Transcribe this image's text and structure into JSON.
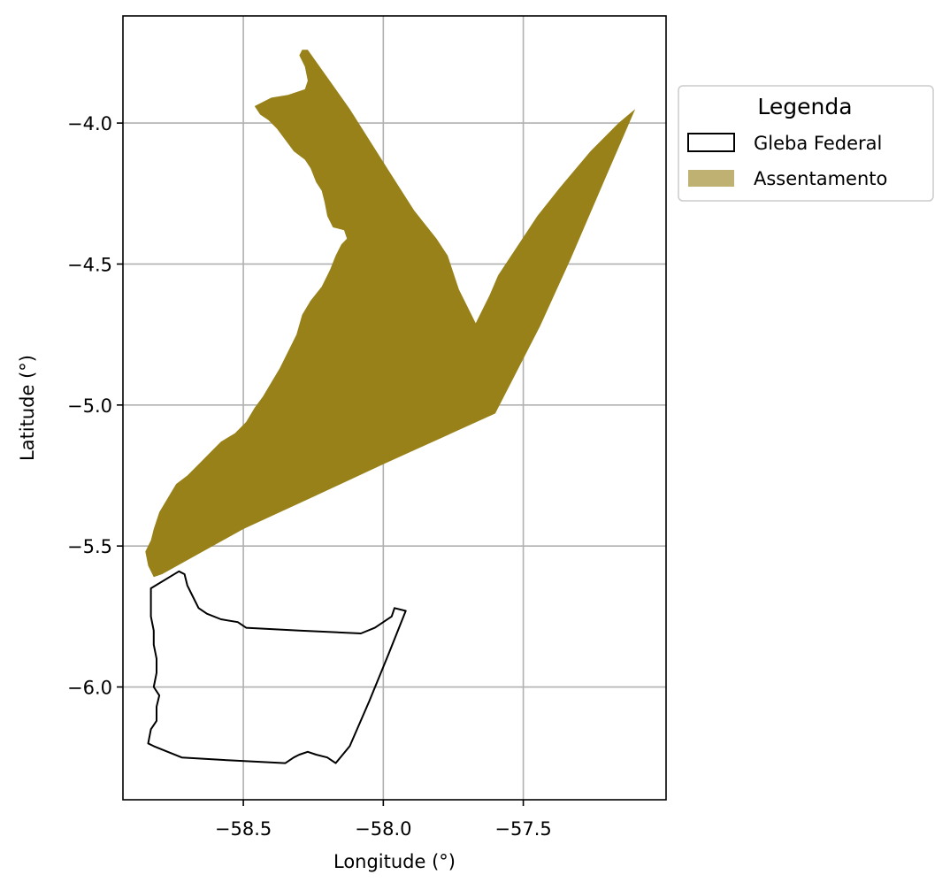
{
  "chart_data": {
    "type": "map",
    "xlabel": "Longitude (°)",
    "ylabel": "Latitude (°)",
    "xlim": [
      -58.93,
      -56.99
    ],
    "ylim": [
      -6.4,
      -3.62
    ],
    "grid": true,
    "x_ticks": [
      -58.5,
      -58.0,
      -57.5
    ],
    "x_tick_labels": [
      "−58.5",
      "−58.0",
      "−57.5"
    ],
    "y_ticks": [
      -4.0,
      -4.5,
      -5.0,
      -5.5,
      -6.0
    ],
    "y_tick_labels": [
      "−4.0",
      "−4.5",
      "−5.0",
      "−5.5",
      "−6.0"
    ],
    "legend": {
      "title": "Legenda",
      "placement": "outside upper right",
      "entries": [
        {
          "label": "Gleba Federal",
          "style": "outline",
          "color": "#000000"
        },
        {
          "label": "Assentamento",
          "style": "fill",
          "color": "#bfb172"
        }
      ]
    },
    "layers": [
      {
        "name": "Assentamento",
        "fill_color": "#988119",
        "coords": [
          [
            -58.27,
            -3.74
          ],
          [
            -58.12,
            -3.95
          ],
          [
            -57.98,
            -4.17
          ],
          [
            -57.89,
            -4.31
          ],
          [
            -57.81,
            -4.41
          ],
          [
            -57.77,
            -4.47
          ],
          [
            -57.73,
            -4.59
          ],
          [
            -57.67,
            -4.71
          ],
          [
            -57.62,
            -4.61
          ],
          [
            -57.59,
            -4.54
          ],
          [
            -57.51,
            -4.42
          ],
          [
            -57.45,
            -4.33
          ],
          [
            -57.37,
            -4.23
          ],
          [
            -57.26,
            -4.1
          ],
          [
            -57.16,
            -4.0
          ],
          [
            -57.1,
            -3.95
          ],
          [
            -57.2,
            -4.18
          ],
          [
            -57.33,
            -4.48
          ],
          [
            -57.44,
            -4.72
          ],
          [
            -57.6,
            -5.03
          ],
          [
            -57.8,
            -5.12
          ],
          [
            -58.0,
            -5.21
          ],
          [
            -58.26,
            -5.33
          ],
          [
            -58.5,
            -5.44
          ],
          [
            -58.79,
            -5.6
          ],
          [
            -58.82,
            -5.61
          ],
          [
            -58.84,
            -5.57
          ],
          [
            -58.85,
            -5.52
          ],
          [
            -58.83,
            -5.48
          ],
          [
            -58.82,
            -5.44
          ],
          [
            -58.8,
            -5.38
          ],
          [
            -58.77,
            -5.33
          ],
          [
            -58.74,
            -5.28
          ],
          [
            -58.7,
            -5.25
          ],
          [
            -58.66,
            -5.21
          ],
          [
            -58.63,
            -5.18
          ],
          [
            -58.58,
            -5.13
          ],
          [
            -58.53,
            -5.1
          ],
          [
            -58.49,
            -5.06
          ],
          [
            -58.46,
            -5.01
          ],
          [
            -58.43,
            -4.97
          ],
          [
            -58.4,
            -4.92
          ],
          [
            -58.37,
            -4.87
          ],
          [
            -58.34,
            -4.81
          ],
          [
            -58.31,
            -4.75
          ],
          [
            -58.29,
            -4.68
          ],
          [
            -58.26,
            -4.63
          ],
          [
            -58.22,
            -4.58
          ],
          [
            -58.19,
            -4.52
          ],
          [
            -58.17,
            -4.47
          ],
          [
            -58.15,
            -4.43
          ],
          [
            -58.13,
            -4.41
          ],
          [
            -58.14,
            -4.38
          ],
          [
            -58.18,
            -4.37
          ],
          [
            -58.2,
            -4.33
          ],
          [
            -58.21,
            -4.28
          ],
          [
            -58.22,
            -4.24
          ],
          [
            -58.24,
            -4.21
          ],
          [
            -58.26,
            -4.16
          ],
          [
            -58.28,
            -4.13
          ],
          [
            -58.32,
            -4.1
          ],
          [
            -58.35,
            -4.06
          ],
          [
            -58.38,
            -4.02
          ],
          [
            -58.41,
            -3.99
          ],
          [
            -58.44,
            -3.97
          ],
          [
            -58.46,
            -3.94
          ],
          [
            -58.4,
            -3.91
          ],
          [
            -58.34,
            -3.9
          ],
          [
            -58.28,
            -3.88
          ],
          [
            -58.27,
            -3.85
          ],
          [
            -58.28,
            -3.8
          ],
          [
            -58.3,
            -3.76
          ],
          [
            -58.29,
            -3.74
          ]
        ]
      },
      {
        "name": "Gleba Federal",
        "outline_color": "#000000",
        "coords": [
          [
            -58.83,
            -5.65
          ],
          [
            -58.73,
            -5.59
          ],
          [
            -58.71,
            -5.6
          ],
          [
            -58.7,
            -5.64
          ],
          [
            -58.68,
            -5.68
          ],
          [
            -58.66,
            -5.72
          ],
          [
            -58.63,
            -5.74
          ],
          [
            -58.58,
            -5.76
          ],
          [
            -58.52,
            -5.77
          ],
          [
            -58.49,
            -5.79
          ],
          [
            -58.3,
            -5.8
          ],
          [
            -58.08,
            -5.81
          ],
          [
            -58.03,
            -5.79
          ],
          [
            -58.0,
            -5.77
          ],
          [
            -57.97,
            -5.75
          ],
          [
            -57.96,
            -5.72
          ],
          [
            -57.92,
            -5.73
          ],
          [
            -57.98,
            -5.88
          ],
          [
            -58.05,
            -6.05
          ],
          [
            -58.12,
            -6.21
          ],
          [
            -58.17,
            -6.27
          ],
          [
            -58.2,
            -6.25
          ],
          [
            -58.24,
            -6.24
          ],
          [
            -58.27,
            -6.23
          ],
          [
            -58.3,
            -6.24
          ],
          [
            -58.32,
            -6.25
          ],
          [
            -58.35,
            -6.27
          ],
          [
            -58.55,
            -6.26
          ],
          [
            -58.72,
            -6.25
          ],
          [
            -58.77,
            -6.23
          ],
          [
            -58.82,
            -6.21
          ],
          [
            -58.84,
            -6.2
          ],
          [
            -58.83,
            -6.15
          ],
          [
            -58.81,
            -6.12
          ],
          [
            -58.81,
            -6.07
          ],
          [
            -58.8,
            -6.03
          ],
          [
            -58.82,
            -6.0
          ],
          [
            -58.81,
            -5.95
          ],
          [
            -58.81,
            -5.9
          ],
          [
            -58.82,
            -5.85
          ],
          [
            -58.82,
            -5.8
          ],
          [
            -58.83,
            -5.75
          ],
          [
            -58.83,
            -5.7
          ],
          [
            -58.83,
            -5.65
          ]
        ]
      }
    ]
  }
}
